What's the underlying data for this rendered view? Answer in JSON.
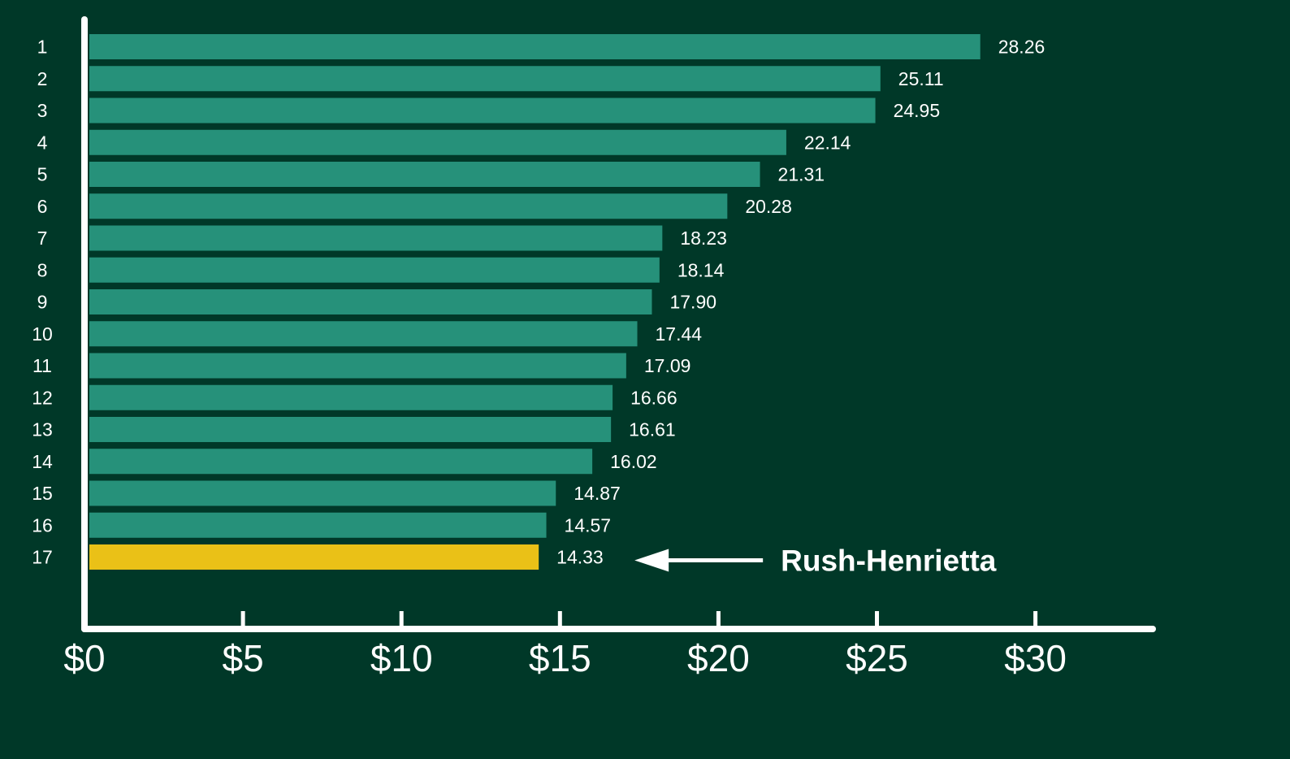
{
  "chart_data": {
    "type": "bar",
    "orientation": "horizontal",
    "categories": [
      "1",
      "2",
      "3",
      "4",
      "5",
      "6",
      "7",
      "8",
      "9",
      "10",
      "11",
      "12",
      "13",
      "14",
      "15",
      "16",
      "17"
    ],
    "values": [
      28.26,
      25.11,
      24.95,
      22.14,
      21.31,
      20.28,
      18.23,
      18.14,
      17.9,
      17.44,
      17.09,
      16.66,
      16.61,
      16.02,
      14.87,
      14.57,
      14.33
    ],
    "value_labels": [
      "28.26",
      "25.11",
      "24.95",
      "22.14",
      "21.31",
      "20.28",
      "18.23",
      "18.14",
      "17.90",
      "17.44",
      "17.09",
      "16.66",
      "16.61",
      "16.02",
      "14.87",
      "14.57",
      "14.33"
    ],
    "highlight_index": 16,
    "x_ticks": [
      0,
      5,
      10,
      15,
      20,
      25,
      30
    ],
    "x_tick_labels": [
      "$0",
      "$5",
      "$10",
      "$15",
      "$20",
      "$25",
      "$30"
    ],
    "xlim": [
      0,
      33.7
    ],
    "title": "",
    "xlabel": "",
    "ylabel": "",
    "grid": false,
    "annotation": {
      "text": "Rush-Henrietta",
      "target_index": 16
    },
    "colors": {
      "background": "#003828",
      "bar": "#26917a",
      "highlight": "#eac117",
      "axis": "#ffffff",
      "text": "#ffffff"
    }
  }
}
